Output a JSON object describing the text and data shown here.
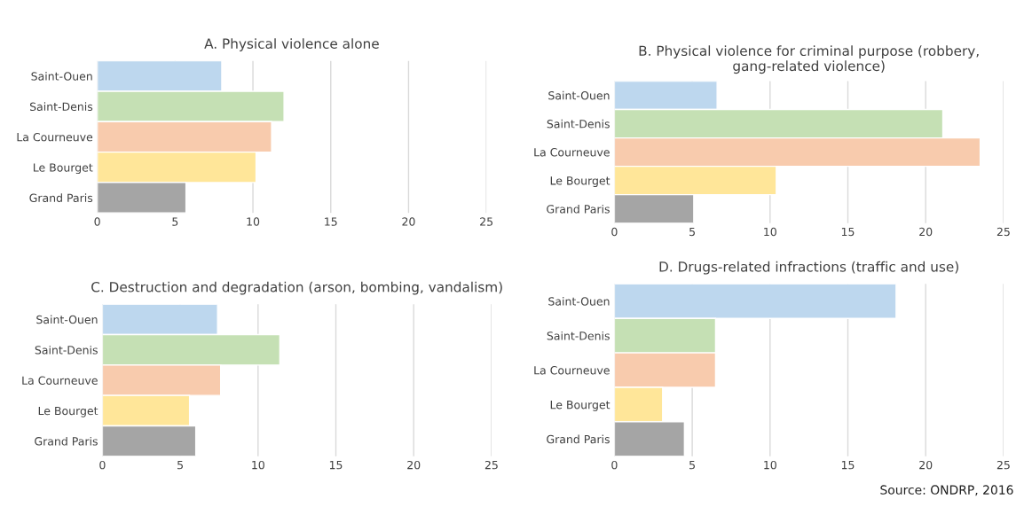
{
  "chart_data": [
    {
      "type": "bar",
      "orientation": "horizontal",
      "title": "A. Physical violence alone",
      "categories": [
        "Saint-Ouen",
        "Saint-Denis",
        "La Courneuve",
        "Le Bourget",
        "Grand Paris"
      ],
      "values": [
        8.0,
        12.0,
        11.2,
        10.2,
        5.7
      ],
      "colors": [
        "#bdd7ee",
        "#c5e0b4",
        "#f8cbad",
        "#ffe699",
        "#a5a5a5"
      ],
      "xlim": [
        0,
        25
      ],
      "xticks": [
        0,
        5,
        10,
        15,
        20,
        25
      ],
      "grid": "x"
    },
    {
      "type": "bar",
      "orientation": "horizontal",
      "title": "B. Physical violence for criminal purpose (robbery, gang-related violence)",
      "categories": [
        "Saint-Ouen",
        "Saint-Denis",
        "La Courneuve",
        "Le Bourget",
        "Grand Paris"
      ],
      "values": [
        6.6,
        21.1,
        23.5,
        10.4,
        5.1
      ],
      "colors": [
        "#bdd7ee",
        "#c5e0b4",
        "#f8cbad",
        "#ffe699",
        "#a5a5a5"
      ],
      "xlim": [
        0,
        25
      ],
      "xticks": [
        0,
        5,
        10,
        15,
        20,
        25
      ],
      "grid": "x"
    },
    {
      "type": "bar",
      "orientation": "horizontal",
      "title": "C. Destruction and degradation (arson, bombing, vandalism)",
      "categories": [
        "Saint-Ouen",
        "Saint-Denis",
        "La Courneuve",
        "Le Bourget",
        "Grand Paris"
      ],
      "values": [
        7.4,
        11.4,
        7.6,
        5.6,
        6.0
      ],
      "colors": [
        "#bdd7ee",
        "#c5e0b4",
        "#f8cbad",
        "#ffe699",
        "#a5a5a5"
      ],
      "xlim": [
        0,
        25
      ],
      "xticks": [
        0,
        5,
        10,
        15,
        20,
        25
      ],
      "grid": "x"
    },
    {
      "type": "bar",
      "orientation": "horizontal",
      "title": "D. Drugs-related infractions (traffic and use)",
      "categories": [
        "Saint-Ouen",
        "Saint-Denis",
        "La Courneuve",
        "Le Bourget",
        "Grand Paris"
      ],
      "values": [
        18.1,
        6.5,
        6.5,
        3.1,
        4.5
      ],
      "colors": [
        "#bdd7ee",
        "#c5e0b4",
        "#f8cbad",
        "#ffe699",
        "#a5a5a5"
      ],
      "xlim": [
        0,
        25
      ],
      "xticks": [
        0,
        5,
        10,
        15,
        20,
        25
      ],
      "grid": "x",
      "annotations": [
        "Source: ONDRP, 2016"
      ]
    }
  ]
}
